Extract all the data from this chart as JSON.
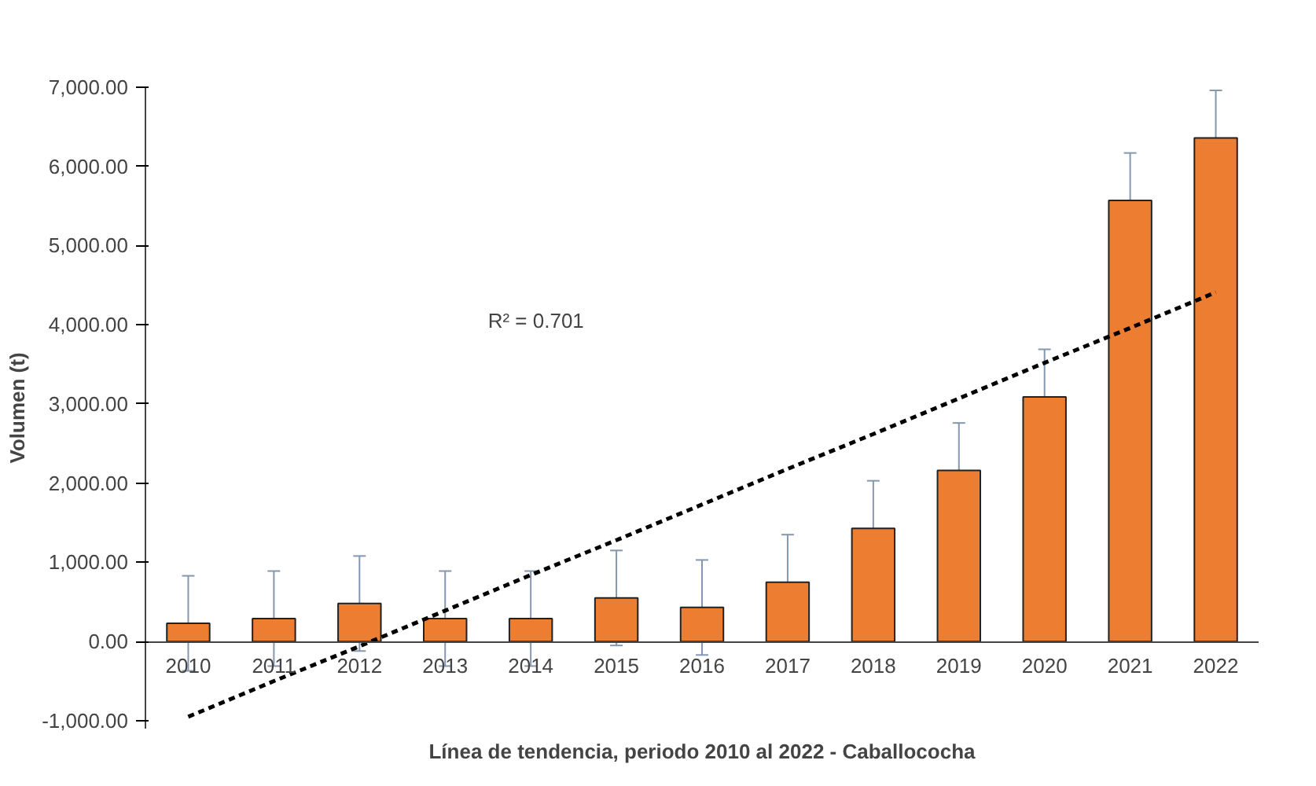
{
  "chart_data": {
    "type": "bar",
    "title": "Línea de tendencia, periodo 2010 al 2022 - Caballococha",
    "ylabel": "Volumen (t)",
    "categories": [
      "2010",
      "2011",
      "2012",
      "2013",
      "2014",
      "2015",
      "2016",
      "2017",
      "2018",
      "2019",
      "2020",
      "2021",
      "2022"
    ],
    "series": [
      {
        "color": "#ed7d31",
        "values": [
          230,
          290,
          480,
          290,
          290,
          550,
          430,
          750,
          1430,
          2160,
          3090,
          5570,
          6360
        ],
        "errors": [
          600,
          600,
          600,
          600,
          600,
          600,
          600,
          600,
          600,
          600,
          600,
          600,
          600
        ]
      },
      {
        "type": "line",
        "color": "#000000",
        "line_style": "dashed",
        "values": [
          -950,
          -500,
          -60,
          390,
          840,
          1280,
          1730,
          2180,
          2620,
          3070,
          3520,
          3960,
          4410
        ]
      }
    ],
    "ylim": [
      -1100,
      7000
    ],
    "yticks": [
      {
        "value": -1000,
        "label": "-1,000.00"
      },
      {
        "value": 0,
        "label": "0.00"
      },
      {
        "value": 1000,
        "label": "1,000.00"
      },
      {
        "value": 2000,
        "label": "2,000.00"
      },
      {
        "value": 3000,
        "label": "3,000.00"
      },
      {
        "value": 4000,
        "label": "4,000.00"
      },
      {
        "value": 5000,
        "label": "5,000.00"
      },
      {
        "value": 6000,
        "label": "6,000.00"
      },
      {
        "value": 7000,
        "label": "7,000.00"
      }
    ],
    "annotations": [
      "R² = 0.701"
    ],
    "grid": false
  }
}
